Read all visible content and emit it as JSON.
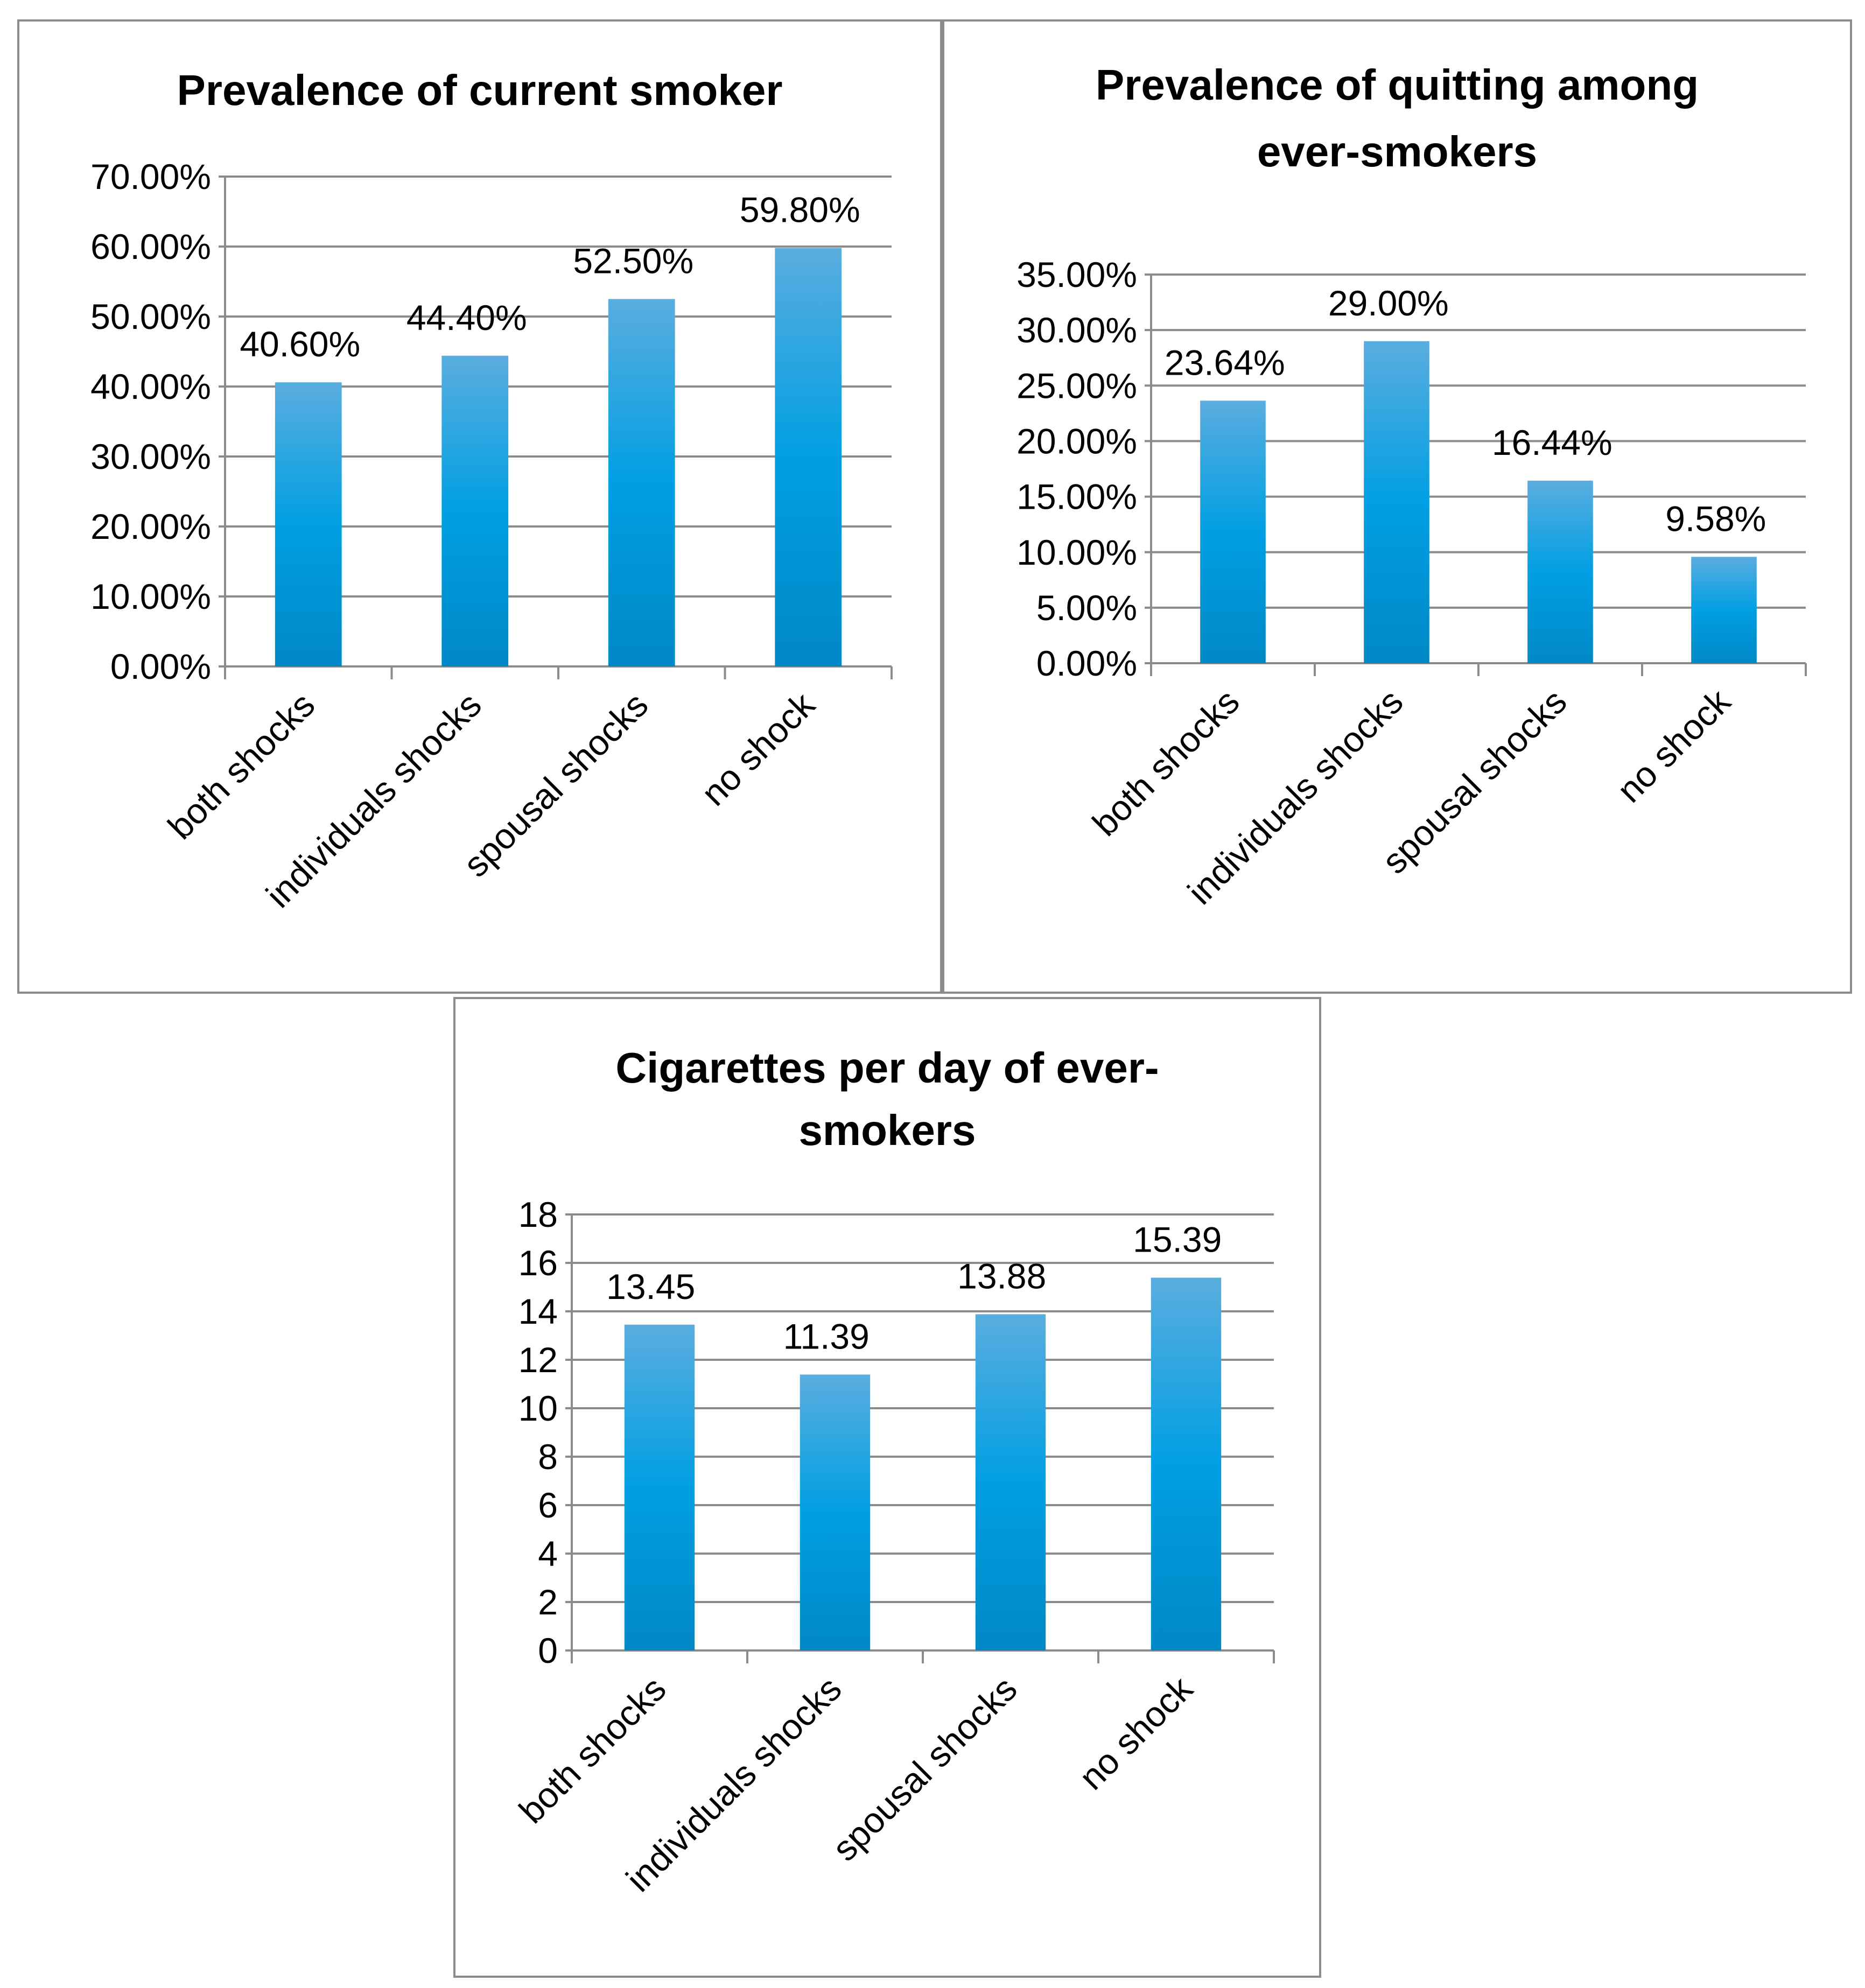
{
  "colors": {
    "bar_top": "#5aaddf",
    "bar_mid": "#009fe3",
    "bar_bottom": "#0088c6",
    "grid": "#8c8c8c",
    "border": "#8c8c8c"
  },
  "chart_data": [
    {
      "type": "bar",
      "title": "Prevalence of current smoker",
      "categories": [
        "both shocks",
        "individuals shocks",
        "spousal shocks",
        "no shock"
      ],
      "values": [
        40.6,
        44.4,
        52.5,
        59.8
      ],
      "data_labels": [
        "40.60%",
        "44.40%",
        "52.50%",
        "59.80%"
      ],
      "ylim": [
        0,
        70
      ],
      "yticks": [
        0,
        10,
        20,
        30,
        40,
        50,
        60,
        70
      ],
      "ytick_labels": [
        "0.00%",
        "10.00%",
        "20.00%",
        "30.00%",
        "40.00%",
        "50.00%",
        "60.00%",
        "70.00%"
      ],
      "xlabel": "",
      "ylabel": "",
      "grid": true,
      "legend": "none"
    },
    {
      "type": "bar",
      "title": "Prevalence of quitting among\never-smokers",
      "categories": [
        "both shocks",
        "individuals shocks",
        "spousal shocks",
        "no shock"
      ],
      "values": [
        23.64,
        29.0,
        16.44,
        9.58
      ],
      "data_labels": [
        "23.64%",
        "29.00%",
        "16.44%",
        "9.58%"
      ],
      "ylim": [
        0,
        35
      ],
      "yticks": [
        0,
        5,
        10,
        15,
        20,
        25,
        30,
        35
      ],
      "ytick_labels": [
        "0.00%",
        "5.00%",
        "10.00%",
        "15.00%",
        "20.00%",
        "25.00%",
        "30.00%",
        "35.00%"
      ],
      "xlabel": "",
      "ylabel": "",
      "grid": true,
      "legend": "none"
    },
    {
      "type": "bar",
      "title": "Cigarettes per day of ever-\nsmokers",
      "categories": [
        "both shocks",
        "individuals shocks",
        "spousal shocks",
        "no shock"
      ],
      "values": [
        13.45,
        11.39,
        13.88,
        15.39
      ],
      "data_labels": [
        "13.45",
        "11.39",
        "13.88",
        "15.39"
      ],
      "ylim": [
        0,
        18
      ],
      "yticks": [
        0,
        2,
        4,
        6,
        8,
        10,
        12,
        14,
        16,
        18
      ],
      "ytick_labels": [
        "0",
        "2",
        "4",
        "6",
        "8",
        "10",
        "12",
        "14",
        "16",
        "18"
      ],
      "xlabel": "",
      "ylabel": "",
      "grid": true,
      "legend": "none"
    }
  ]
}
